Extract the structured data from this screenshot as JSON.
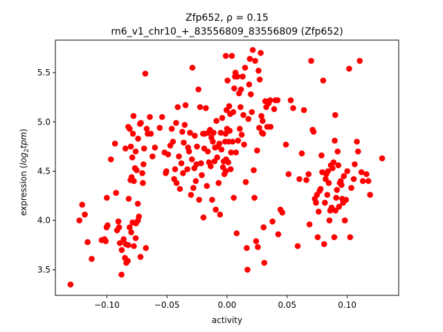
{
  "chart_data": {
    "type": "scatter",
    "title_line1": "Zfp652, ρ = 0.15",
    "title_line2": "rn6_v1_chr10_+_83556809_83556809 (Zfp652)",
    "xlabel": "activity",
    "ylabel_prefix": "expression (",
    "ylabel_math": "log",
    "ylabel_sub": "2",
    "ylabel_math2": "tpm",
    "ylabel_suffix": ")",
    "xlim": [
      -0.1428,
      0.1428
    ],
    "ylim": [
      3.24,
      5.83
    ],
    "xticks": [
      -0.1,
      -0.05,
      0.0,
      0.05,
      0.1
    ],
    "xtick_labels": [
      "−0.10",
      "−0.05",
      "0.00",
      "0.05",
      "0.10"
    ],
    "yticks": [
      3.5,
      4.0,
      4.5,
      5.0,
      5.5
    ],
    "ytick_labels": [
      "3.5",
      "4.0",
      "4.5",
      "5.0",
      "5.5"
    ],
    "grid": false,
    "marker_color": "#ff0000",
    "points": [
      [
        -0.1302,
        3.35
      ],
      [
        -0.1228,
        4.0
      ],
      [
        -0.1205,
        4.16
      ],
      [
        -0.1183,
        4.06
      ],
      [
        -0.116,
        3.78
      ],
      [
        -0.1126,
        3.61
      ],
      [
        -0.1043,
        3.8
      ],
      [
        -0.1019,
        3.81
      ],
      [
        -0.1009,
        3.79
      ],
      [
        -0.1,
        4.23
      ],
      [
        -0.0994,
        3.95
      ],
      [
        -0.1002,
        3.93
      ],
      [
        -0.0966,
        4.62
      ],
      [
        -0.0932,
        4.78
      ],
      [
        -0.0923,
        4.28
      ],
      [
        -0.0904,
        3.99
      ],
      [
        -0.0915,
        3.9
      ],
      [
        -0.0898,
        3.93
      ],
      [
        -0.0892,
        3.77
      ],
      [
        -0.0878,
        3.45
      ],
      [
        -0.0876,
        3.7
      ],
      [
        -0.086,
        3.81
      ],
      [
        -0.0849,
        3.62
      ],
      [
        -0.0843,
        3.76
      ],
      [
        -0.0838,
        3.57
      ],
      [
        -0.0826,
        3.59
      ],
      [
        -0.0822,
        3.75
      ],
      [
        -0.081,
        3.93
      ],
      [
        -0.0797,
        3.88
      ],
      [
        -0.0786,
        3.98
      ],
      [
        -0.0775,
        3.74
      ],
      [
        -0.076,
        3.82
      ],
      [
        -0.0758,
        3.97
      ],
      [
        -0.0741,
        4.0
      ],
      [
        -0.0733,
        4.04
      ],
      [
        -0.0742,
        4.17
      ],
      [
        -0.072,
        3.63
      ],
      [
        -0.0675,
        3.72
      ],
      [
        -0.0845,
        4.73
      ],
      [
        -0.0822,
        4.95
      ],
      [
        -0.081,
        4.93
      ],
      [
        -0.08,
        4.75
      ],
      [
        -0.0788,
        4.64
      ],
      [
        -0.0783,
        4.88
      ],
      [
        -0.0778,
        5.06
      ],
      [
        -0.0766,
        4.53
      ],
      [
        -0.076,
        4.7
      ],
      [
        -0.0752,
        4.51
      ],
      [
        -0.074,
        4.83
      ],
      [
        -0.0724,
        4.98
      ],
      [
        -0.0717,
        4.99
      ],
      [
        -0.07,
        4.38
      ],
      [
        -0.0695,
        4.57
      ],
      [
        -0.069,
        4.73
      ],
      [
        -0.068,
        5.49
      ],
      [
        -0.0668,
        4.93
      ],
      [
        -0.066,
        4.88
      ],
      [
        -0.0642,
        5.05
      ],
      [
        -0.0634,
        4.88
      ],
      [
        -0.062,
        4.65
      ],
      [
        -0.0803,
        4.41
      ],
      [
        -0.0794,
        4.44
      ],
      [
        -0.0818,
        4.22
      ],
      [
        -0.0775,
        4.4
      ],
      [
        -0.0705,
        4.48
      ],
      [
        -0.06,
        4.74
      ],
      [
        -0.056,
        4.94
      ],
      [
        -0.054,
        5.05
      ],
      [
        -0.052,
        4.69
      ],
      [
        -0.051,
        4.48
      ],
      [
        -0.0505,
        4.5
      ],
      [
        -0.049,
        4.67
      ],
      [
        -0.0472,
        4.76
      ],
      [
        -0.046,
        4.93
      ],
      [
        -0.045,
        4.8
      ],
      [
        -0.044,
        4.42
      ],
      [
        -0.0432,
        4.52
      ],
      [
        -0.0424,
        4.99
      ],
      [
        -0.042,
        4.38
      ],
      [
        -0.041,
        5.15
      ],
      [
        -0.04,
        4.65
      ],
      [
        -0.0392,
        4.32
      ],
      [
        -0.038,
        4.58
      ],
      [
        -0.0372,
        4.9
      ],
      [
        -0.0366,
        4.48
      ],
      [
        -0.036,
        4.79
      ],
      [
        -0.0352,
        4.97
      ],
      [
        -0.0345,
        5.17
      ],
      [
        -0.033,
        4.52
      ],
      [
        -0.0324,
        4.74
      ],
      [
        -0.0316,
        4.7
      ],
      [
        -0.0308,
        4.89
      ],
      [
        -0.03,
        4.26
      ],
      [
        -0.0292,
        4.62
      ],
      [
        -0.0288,
        5.55
      ],
      [
        -0.028,
        4.33
      ],
      [
        -0.0272,
        4.53
      ],
      [
        -0.0268,
        4.86
      ],
      [
        -0.026,
        4.4
      ],
      [
        -0.0254,
        4.57
      ],
      [
        -0.025,
        4.75
      ],
      [
        -0.0238,
        5.33
      ],
      [
        -0.0232,
        4.21
      ],
      [
        -0.0224,
        5.15
      ],
      [
        -0.0216,
        4.58
      ],
      [
        -0.021,
        4.46
      ],
      [
        -0.02,
        4.88
      ],
      [
        -0.0196,
        4.03
      ],
      [
        -0.019,
        4.73
      ],
      [
        -0.0184,
        4.88
      ],
      [
        -0.0176,
        5.14
      ],
      [
        -0.0168,
        4.35
      ],
      [
        -0.016,
        4.7
      ],
      [
        -0.0156,
        4.89
      ],
      [
        -0.015,
        4.59
      ],
      [
        -0.0142,
        4.92
      ],
      [
        -0.0136,
        4.55
      ],
      [
        -0.013,
        4.84
      ],
      [
        -0.0124,
        4.21
      ],
      [
        -0.0118,
        4.8
      ],
      [
        -0.0112,
        4.89
      ],
      [
        -0.0104,
        4.6
      ],
      [
        -0.01,
        4.74
      ],
      [
        -0.0094,
        4.11
      ],
      [
        -0.0088,
        5.01
      ],
      [
        -0.0082,
        4.64
      ],
      [
        -0.0076,
        4.75
      ],
      [
        -0.007,
        4.38
      ],
      [
        -0.0064,
        4.78
      ],
      [
        -0.0058,
        4.06
      ],
      [
        -0.0052,
        4.89
      ],
      [
        -0.0046,
        4.72
      ],
      [
        -0.004,
        5.04
      ],
      [
        -0.0034,
        4.54
      ],
      [
        -0.0028,
        4.6
      ],
      [
        -0.0022,
        4.47
      ],
      [
        -0.0016,
        4.8
      ],
      [
        -0.0012,
        4.88
      ],
      [
        -0.0008,
        4.62
      ],
      [
        -0.0004,
        5.12
      ],
      [
        -0.001,
        5.67
      ],
      [
        -0.001,
        4.5
      ],
      [
        0.0,
        4.93
      ],
      [
        0.0004,
        5.42
      ],
      [
        0.001,
        4.59
      ],
      [
        0.0014,
        4.8
      ],
      [
        0.0018,
        5.16
      ],
      [
        0.0022,
        4.91
      ],
      [
        0.0026,
        5.08
      ],
      [
        0.003,
        4.52
      ],
      [
        0.0034,
        4.69
      ],
      [
        0.004,
        5.67
      ],
      [
        0.0046,
        4.8
      ],
      [
        0.0052,
        5.1
      ],
      [
        0.0056,
        4.23
      ],
      [
        0.006,
        5.34
      ],
      [
        0.0066,
        5.46
      ],
      [
        0.007,
        5.5
      ],
      [
        0.0074,
        4.69
      ],
      [
        0.008,
        3.87
      ],
      [
        0.0086,
        5.46
      ],
      [
        0.0092,
        4.81
      ],
      [
        0.01,
        5.29
      ],
      [
        0.0106,
        4.93
      ],
      [
        0.0112,
        5.15
      ],
      [
        0.0116,
        5.33
      ],
      [
        0.0122,
        4.87
      ],
      [
        0.013,
        5.46
      ],
      [
        0.0136,
        5.07
      ],
      [
        0.0142,
        4.77
      ],
      [
        0.015,
        5.55
      ],
      [
        0.0156,
        4.39
      ],
      [
        0.0164,
        3.72
      ],
      [
        0.017,
        3.5
      ],
      [
        0.0178,
        5.03
      ],
      [
        0.0184,
        5.38
      ],
      [
        0.019,
        5.64
      ],
      [
        0.0198,
        5.28
      ],
      [
        0.0206,
        5.1
      ],
      [
        0.0214,
        5.73
      ],
      [
        0.0222,
        4.51
      ],
      [
        0.0228,
        4.23
      ],
      [
        0.0234,
        5.62
      ],
      [
        0.0242,
        3.79
      ],
      [
        0.025,
        4.71
      ],
      [
        0.0256,
        3.73
      ],
      [
        0.0262,
        5.52
      ],
      [
        0.0268,
        4.94
      ],
      [
        0.0272,
        5.43
      ],
      [
        0.028,
        5.7
      ],
      [
        0.0286,
        5.06
      ],
      [
        0.029,
        4.89
      ],
      [
        0.0296,
        5.01
      ],
      [
        0.03,
        4.88
      ],
      [
        0.0304,
        3.93
      ],
      [
        0.031,
        3.57
      ],
      [
        0.0318,
        5.21
      ],
      [
        0.0326,
        5.15
      ],
      [
        0.0334,
        4.95
      ],
      [
        0.0346,
        5.19
      ],
      [
        0.0358,
        5.22
      ],
      [
        0.0362,
        4.95
      ],
      [
        0.0378,
        3.99
      ],
      [
        0.0392,
        5.13
      ],
      [
        0.0402,
        5.22
      ],
      [
        0.042,
        5.22
      ],
      [
        0.0426,
        3.86
      ],
      [
        0.0444,
        4.11
      ],
      [
        0.046,
        4.08
      ],
      [
        0.049,
        4.77
      ],
      [
        0.0512,
        4.47
      ],
      [
        0.053,
        5.22
      ],
      [
        0.055,
        5.14
      ],
      [
        0.0588,
        3.74
      ],
      [
        0.0602,
        4.42
      ],
      [
        0.0622,
        4.68
      ],
      [
        0.064,
        5.12
      ],
      [
        0.066,
        4.41
      ],
      [
        0.0678,
        4.47
      ],
      [
        0.0686,
        3.96
      ],
      [
        0.07,
        5.62
      ],
      [
        0.0712,
        4.92
      ],
      [
        0.072,
        4.9
      ],
      [
        0.073,
        4.22
      ],
      [
        0.074,
        4.18
      ],
      [
        0.0748,
        4.26
      ],
      [
        0.0754,
        3.83
      ],
      [
        0.0762,
        4.09
      ],
      [
        0.077,
        4.3
      ],
      [
        0.0778,
        4.32
      ],
      [
        0.0786,
        4.66
      ],
      [
        0.0792,
        4.49
      ],
      [
        0.08,
        5.42
      ],
      [
        0.0808,
        3.76
      ],
      [
        0.0814,
        4.18
      ],
      [
        0.082,
        4.42
      ],
      [
        0.0826,
        4.47
      ],
      [
        0.0834,
        4.26
      ],
      [
        0.084,
        4.5
      ],
      [
        0.0846,
        4.38
      ],
      [
        0.0852,
        4.0
      ],
      [
        0.0858,
        4.1
      ],
      [
        0.0864,
        4.56
      ],
      [
        0.087,
        4.13
      ],
      [
        0.0878,
        4.53
      ],
      [
        0.0886,
        4.59
      ],
      [
        0.0892,
        3.83
      ],
      [
        0.0896,
        4.81
      ],
      [
        0.0902,
        4.1
      ],
      [
        0.0908,
        4.23
      ],
      [
        0.0914,
        4.31
      ],
      [
        0.092,
        4.7
      ],
      [
        0.0926,
        4.56
      ],
      [
        0.0932,
        4.14
      ],
      [
        0.0938,
        4.38
      ],
      [
        0.0946,
        4.4
      ],
      [
        0.0952,
        4.36
      ],
      [
        0.0958,
        4.22
      ],
      [
        0.0966,
        4.18
      ],
      [
        0.0972,
        4.45
      ],
      [
        0.098,
        4.0
      ],
      [
        0.099,
        4.21
      ],
      [
        0.1,
        4.5
      ],
      [
        0.1016,
        5.54
      ],
      [
        0.1024,
        3.83
      ],
      [
        0.1034,
        4.33
      ],
      [
        0.1054,
        4.42
      ],
      [
        0.1062,
        4.57
      ],
      [
        0.108,
        4.8
      ],
      [
        0.109,
        4.7
      ],
      [
        0.1104,
        5.62
      ],
      [
        0.1118,
        4.49
      ],
      [
        0.113,
        4.4
      ],
      [
        0.116,
        4.47
      ],
      [
        0.1176,
        4.4
      ],
      [
        0.119,
        4.26
      ],
      [
        0.129,
        4.63
      ],
      [
        0.09,
        5.07
      ]
    ]
  }
}
